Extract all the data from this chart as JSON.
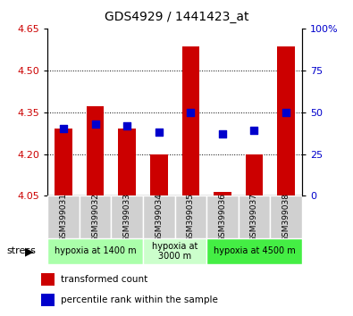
{
  "title": "GDS4929 / 1441423_at",
  "samples": [
    "GSM399031",
    "GSM399032",
    "GSM399033",
    "GSM399034",
    "GSM399035",
    "GSM399036",
    "GSM399037",
    "GSM399038"
  ],
  "bar_values": [
    4.29,
    4.37,
    4.29,
    4.2,
    4.585,
    4.065,
    4.2,
    4.585
  ],
  "bar_base": 4.05,
  "percentile_values": [
    40,
    43,
    42,
    38,
    50,
    37,
    39,
    50
  ],
  "ylim_left": [
    4.05,
    4.65
  ],
  "ylim_right": [
    0,
    100
  ],
  "yticks_left": [
    4.05,
    4.2,
    4.35,
    4.5,
    4.65
  ],
  "yticks_right": [
    0,
    25,
    50,
    75,
    100
  ],
  "ytick_right_labels": [
    "0",
    "25",
    "50",
    "75",
    "100%"
  ],
  "grid_values": [
    4.2,
    4.35,
    4.5
  ],
  "bar_color": "#cc0000",
  "dot_color": "#0000cc",
  "bar_width": 0.55,
  "groups": [
    {
      "label": "hypoxia at 1400 m",
      "indices": [
        0,
        1,
        2
      ],
      "color": "#aaffaa"
    },
    {
      "label": "hypoxia at\n3000 m",
      "indices": [
        3,
        4
      ],
      "color": "#ccffcc"
    },
    {
      "label": "hypoxia at 4500 m",
      "indices": [
        5,
        6,
        7
      ],
      "color": "#44ee44"
    }
  ],
  "stress_label": "stress",
  "legend_bar_label": "transformed count",
  "legend_dot_label": "percentile rank within the sample",
  "tick_label_color_left": "#cc0000",
  "tick_label_color_right": "#0000cc",
  "background_color": "#ffffff",
  "plot_bg_color": "#ffffff",
  "sample_box_color": "#d0d0d0"
}
